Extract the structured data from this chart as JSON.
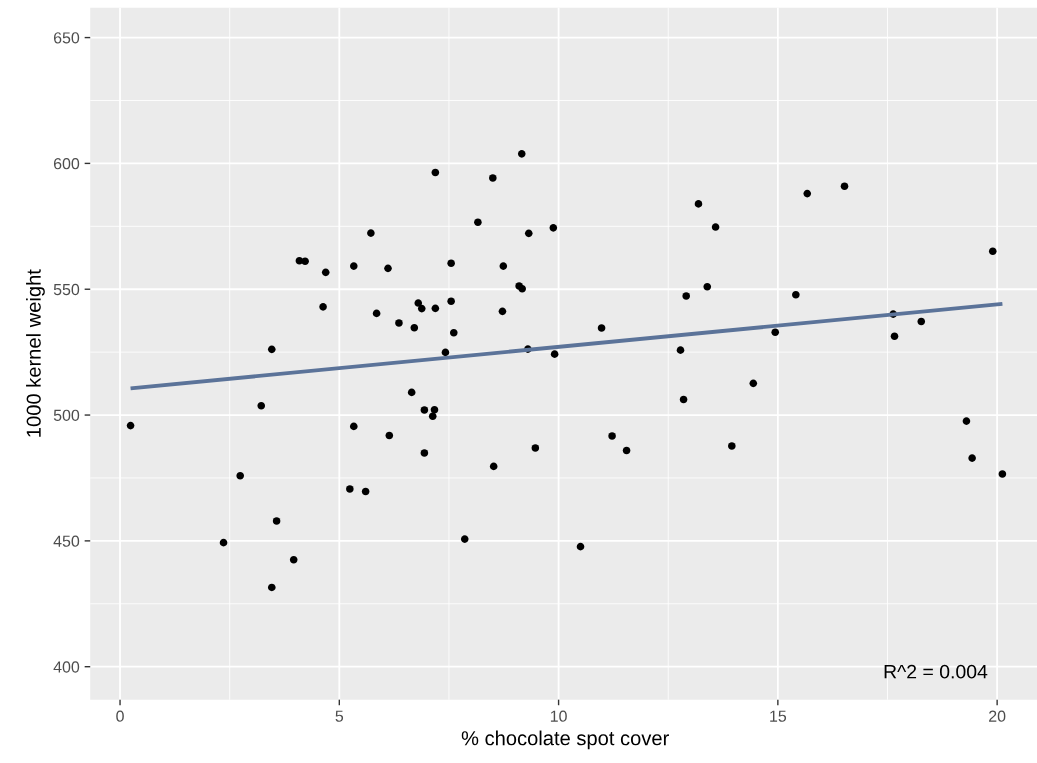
{
  "chart_data": {
    "type": "scatter",
    "xlabel": "% chocolate spot cover",
    "ylabel": "1000 kernel weight",
    "xlim": [
      -0.68,
      20.98
    ],
    "ylim": [
      386.9,
      661.9
    ],
    "xticks": [
      0,
      5,
      10,
      15,
      20
    ],
    "yticks": [
      400,
      450,
      500,
      550,
      600,
      650
    ],
    "grid": true,
    "marker": "circle",
    "annotations": [
      "R^2 = 0.004"
    ],
    "series": [
      {
        "color": "#000000",
        "x": [
          9.16,
          7.19,
          8.5,
          8.16,
          9.32,
          9.88,
          5.72,
          4.09,
          4.22,
          4.69,
          5.33,
          6.11,
          7.55,
          8.74,
          9.1,
          9.17,
          4.63,
          5.85,
          6.36,
          6.71,
          6.8,
          6.88,
          7.19,
          7.55,
          8.72,
          7.61,
          3.46,
          7.42,
          9.3,
          9.91,
          6.65,
          3.22,
          6.94,
          7.17,
          7.13,
          0.24,
          5.33,
          6.14,
          6.94,
          9.47,
          8.52,
          2.74,
          3.57,
          2.36,
          3.96,
          3.46,
          5.24,
          5.6,
          7.86,
          13.19,
          13.58,
          15.67,
          16.52,
          19.9,
          12.91,
          13.39,
          15.41,
          10.98,
          14.94,
          17.63,
          18.27,
          17.66,
          12.78,
          14.44,
          12.85,
          19.3,
          11.22,
          11.55,
          13.95,
          19.43,
          20.12,
          10.5
        ],
        "values": [
          603.8,
          596.4,
          594.2,
          576.6,
          572.2,
          574.4,
          572.3,
          561.3,
          561.1,
          556.7,
          559.2,
          558.3,
          560.3,
          559.2,
          551.3,
          550.2,
          543.0,
          540.4,
          536.6,
          534.7,
          544.5,
          542.3,
          542.4,
          545.2,
          541.2,
          532.7,
          526.1,
          524.9,
          526.2,
          524.2,
          509.0,
          503.7,
          502.0,
          502.1,
          499.5,
          495.8,
          495.5,
          491.9,
          484.9,
          486.9,
          479.6,
          475.9,
          457.9,
          449.3,
          442.5,
          431.5,
          470.6,
          469.6,
          450.7,
          583.9,
          574.7,
          588.0,
          590.9,
          565.1,
          547.3,
          551.0,
          547.8,
          534.6,
          532.9,
          540.1,
          537.2,
          531.3,
          525.8,
          512.6,
          506.2,
          497.6,
          491.7,
          485.9,
          487.7,
          482.9,
          476.6,
          447.7
        ]
      },
      {
        "type": "line",
        "color": "#5b7399",
        "marker": "none",
        "line_style": "solid",
        "x": [
          0.24,
          20.12
        ],
        "values": [
          510.6,
          544.2
        ]
      }
    ]
  }
}
